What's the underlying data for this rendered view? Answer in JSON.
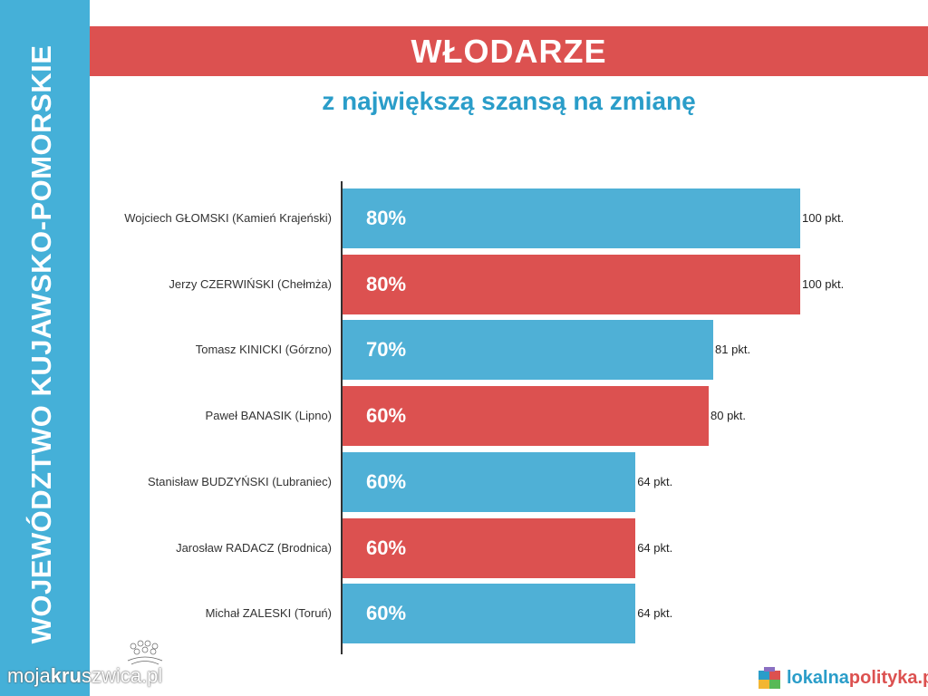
{
  "side_label": "WOJEWÓDZTWO KUJAWSKO-POMORSKIE",
  "title": "WŁODARZE",
  "subtitle": "z największą szansą na zmianę",
  "watermark": {
    "prefix": "moja",
    "bold": "kru",
    "suffix": "szwica.pl"
  },
  "brand": {
    "part1": "lokalna",
    "part2": "polityka.pl"
  },
  "colors": {
    "blue": "#4fb0d6",
    "red": "#dc5150",
    "side": "#45b0d8"
  },
  "chart_data": {
    "type": "bar",
    "orientation": "horizontal",
    "title": "WŁODARZE",
    "subtitle": "z największą szansą na zmianę",
    "xlim": [
      0,
      100
    ],
    "grid": false,
    "categories": [
      "Wojciech GŁOMSKI (Kamień Krajeński)",
      "Jerzy CZERWIŃSKI (Chełmża)",
      "Tomasz KINICKI (Górzno)",
      "Paweł BANASIK (Lipno)",
      "Stanisław BUDZYŃSKI (Lubraniec)",
      "Jarosław RADACZ (Brodnica)",
      "Michał ZALESKI (Toruń)"
    ],
    "values": [
      100,
      100,
      81,
      80,
      64,
      64,
      64
    ],
    "value_labels": [
      "100 pkt.",
      "100 pkt.",
      "81 pkt.",
      "80 pkt.",
      "64 pkt.",
      "64 pkt.",
      "64 pkt."
    ],
    "percent_labels": [
      "80%",
      "80%",
      "70%",
      "60%",
      "60%",
      "60%",
      "60%"
    ],
    "bar_colors": [
      "blue",
      "red",
      "blue",
      "red",
      "blue",
      "red",
      "blue"
    ]
  }
}
